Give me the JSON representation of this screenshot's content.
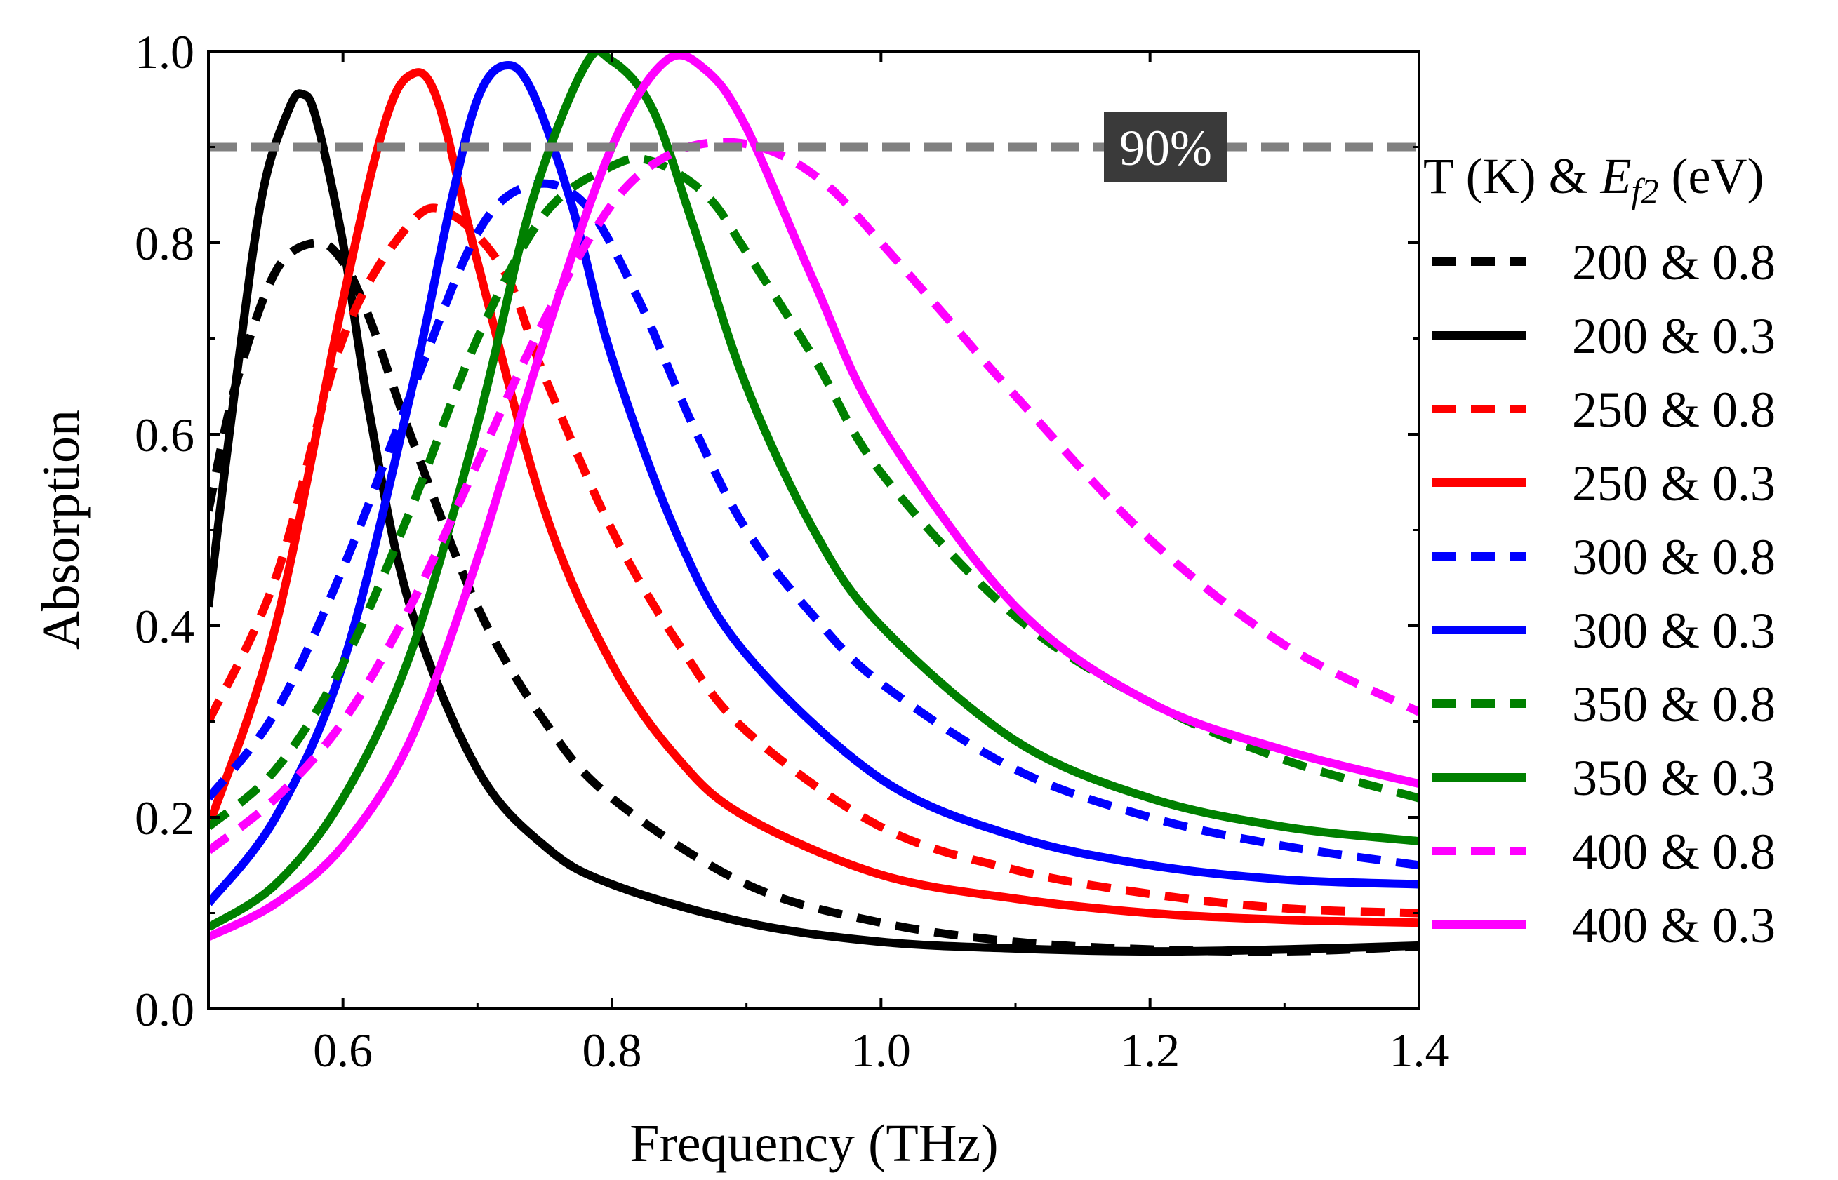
{
  "chart_data": {
    "type": "line",
    "xlabel": "Frequency (THz)",
    "ylabel": "Absorption",
    "xlim": [
      0.5,
      1.4
    ],
    "ylim": [
      0.0,
      1.0
    ],
    "xticks": [
      0.6,
      0.8,
      1.0,
      1.2,
      1.4
    ],
    "yticks": [
      0.0,
      0.2,
      0.4,
      0.6,
      0.8,
      1.0
    ],
    "xtick_labels": [
      "0.6",
      "0.8",
      "1.0",
      "1.2",
      "1.4"
    ],
    "ytick_labels": [
      "0.0",
      "0.2",
      "0.4",
      "0.6",
      "0.8",
      "1.0"
    ],
    "legend_title": {
      "prefix": "T (K) & ",
      "symbol": "E",
      "subscript": "f2",
      "suffix": " (eV)"
    },
    "legend_position": "right",
    "reference_line": {
      "y": 0.9,
      "label": "90%",
      "color": "#808080"
    },
    "series": [
      {
        "name": "200 & 0.8",
        "color": "#000000",
        "style": "dashed",
        "x": [
          0.5,
          0.52,
          0.55,
          0.58,
          0.6,
          0.62,
          0.65,
          0.7,
          0.75,
          0.8,
          0.9,
          1.0,
          1.1,
          1.2,
          1.3,
          1.4
        ],
        "y": [
          0.52,
          0.65,
          0.77,
          0.8,
          0.78,
          0.72,
          0.6,
          0.42,
          0.3,
          0.22,
          0.13,
          0.09,
          0.07,
          0.062,
          0.06,
          0.065
        ]
      },
      {
        "name": "200 & 0.3",
        "color": "#000000",
        "style": "solid",
        "x": [
          0.5,
          0.52,
          0.54,
          0.56,
          0.57,
          0.58,
          0.6,
          0.62,
          0.65,
          0.7,
          0.75,
          0.8,
          0.9,
          1.0,
          1.1,
          1.2,
          1.3,
          1.4
        ],
        "y": [
          0.42,
          0.65,
          0.85,
          0.94,
          0.955,
          0.93,
          0.8,
          0.62,
          0.42,
          0.25,
          0.17,
          0.13,
          0.09,
          0.07,
          0.063,
          0.06,
          0.062,
          0.066
        ]
      },
      {
        "name": "250 & 0.8",
        "color": "#ff0000",
        "style": "dashed",
        "x": [
          0.5,
          0.55,
          0.6,
          0.65,
          0.68,
          0.72,
          0.75,
          0.8,
          0.85,
          0.9,
          1.0,
          1.1,
          1.2,
          1.3,
          1.4
        ],
        "y": [
          0.3,
          0.45,
          0.7,
          0.82,
          0.83,
          0.77,
          0.66,
          0.5,
          0.38,
          0.29,
          0.19,
          0.145,
          0.12,
          0.105,
          0.1
        ]
      },
      {
        "name": "250 & 0.3",
        "color": "#ff0000",
        "style": "solid",
        "x": [
          0.5,
          0.55,
          0.6,
          0.63,
          0.65,
          0.67,
          0.7,
          0.75,
          0.8,
          0.85,
          0.9,
          1.0,
          1.1,
          1.2,
          1.3,
          1.4
        ],
        "y": [
          0.19,
          0.4,
          0.74,
          0.92,
          0.975,
          0.95,
          0.78,
          0.52,
          0.36,
          0.26,
          0.2,
          0.14,
          0.115,
          0.1,
          0.093,
          0.09
        ]
      },
      {
        "name": "300 & 0.8",
        "color": "#0000ff",
        "style": "dashed",
        "x": [
          0.5,
          0.55,
          0.6,
          0.65,
          0.7,
          0.74,
          0.78,
          0.82,
          0.86,
          0.9,
          0.95,
          1.0,
          1.1,
          1.2,
          1.3,
          1.4
        ],
        "y": [
          0.22,
          0.31,
          0.46,
          0.64,
          0.81,
          0.86,
          0.84,
          0.74,
          0.61,
          0.5,
          0.41,
          0.34,
          0.25,
          0.2,
          0.17,
          0.15
        ]
      },
      {
        "name": "300 & 0.3",
        "color": "#0000ff",
        "style": "solid",
        "x": [
          0.5,
          0.55,
          0.6,
          0.65,
          0.68,
          0.7,
          0.72,
          0.74,
          0.77,
          0.8,
          0.85,
          0.9,
          1.0,
          1.1,
          1.2,
          1.3,
          1.4
        ],
        "y": [
          0.11,
          0.2,
          0.36,
          0.64,
          0.84,
          0.95,
          0.985,
          0.96,
          0.84,
          0.68,
          0.49,
          0.37,
          0.24,
          0.18,
          0.15,
          0.135,
          0.13
        ]
      },
      {
        "name": "350 & 0.8",
        "color": "#008000",
        "style": "dashed",
        "x": [
          0.5,
          0.55,
          0.6,
          0.65,
          0.7,
          0.75,
          0.8,
          0.83,
          0.87,
          0.9,
          0.95,
          1.0,
          1.1,
          1.2,
          1.3,
          1.4
        ],
        "y": [
          0.19,
          0.25,
          0.36,
          0.52,
          0.7,
          0.83,
          0.88,
          0.885,
          0.85,
          0.79,
          0.68,
          0.56,
          0.41,
          0.32,
          0.26,
          0.22
        ]
      },
      {
        "name": "350 & 0.3",
        "color": "#008000",
        "style": "solid",
        "x": [
          0.5,
          0.55,
          0.6,
          0.65,
          0.7,
          0.74,
          0.78,
          0.8,
          0.83,
          0.86,
          0.9,
          0.95,
          1.0,
          1.1,
          1.2,
          1.3,
          1.4
        ],
        "y": [
          0.085,
          0.13,
          0.22,
          0.37,
          0.61,
          0.84,
          0.985,
          0.99,
          0.94,
          0.82,
          0.65,
          0.5,
          0.4,
          0.28,
          0.22,
          0.19,
          0.175
        ]
      },
      {
        "name": "400 & 0.8",
        "color": "#ff00ff",
        "style": "dashed",
        "x": [
          0.5,
          0.55,
          0.6,
          0.65,
          0.7,
          0.75,
          0.8,
          0.84,
          0.88,
          0.92,
          0.96,
          1.0,
          1.05,
          1.1,
          1.2,
          1.3,
          1.4
        ],
        "y": [
          0.165,
          0.22,
          0.3,
          0.42,
          0.57,
          0.72,
          0.84,
          0.89,
          0.905,
          0.895,
          0.86,
          0.8,
          0.72,
          0.64,
          0.49,
          0.38,
          0.31
        ]
      },
      {
        "name": "400 & 0.3",
        "color": "#ff00ff",
        "style": "solid",
        "x": [
          0.5,
          0.55,
          0.6,
          0.65,
          0.7,
          0.75,
          0.8,
          0.84,
          0.87,
          0.9,
          0.95,
          1.0,
          1.1,
          1.2,
          1.3,
          1.4
        ],
        "y": [
          0.075,
          0.11,
          0.17,
          0.28,
          0.47,
          0.7,
          0.9,
          0.99,
          0.98,
          0.92,
          0.76,
          0.61,
          0.42,
          0.32,
          0.27,
          0.235
        ]
      }
    ]
  }
}
